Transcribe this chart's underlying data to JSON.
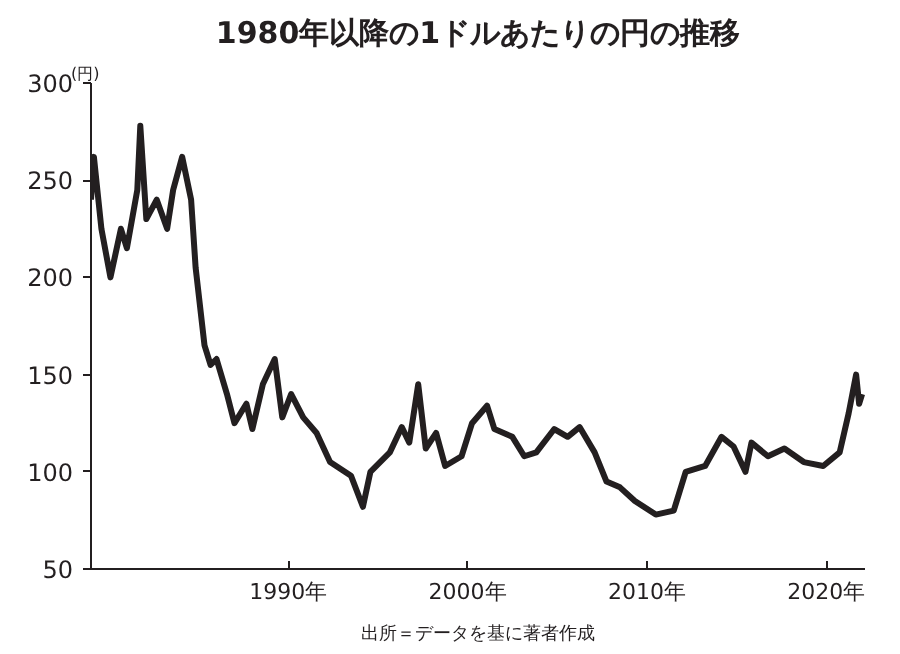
{
  "chart_data": {
    "type": "line",
    "title": "1980年以降の1ドルあたりの円の推移",
    "ylabel": "(円)",
    "annotations": [
      "出所＝データを基に著者作成"
    ],
    "x": [
      "1979-01",
      "1979-03",
      "1979-08",
      "1980-02",
      "1980-09",
      "1981-01",
      "1981-08",
      "1981-10",
      "1982-02",
      "1982-09",
      "1983-04",
      "1983-08",
      "1984-02",
      "1984-08",
      "1984-11",
      "1985-05",
      "1985-09",
      "1986-01",
      "1986-08",
      "1987-01",
      "1987-09",
      "1988-01",
      "1988-08",
      "1989-04",
      "1989-09",
      "1990-03",
      "1990-11",
      "1991-08",
      "1992-05",
      "1993-07",
      "1994-03",
      "1994-08",
      "1995-09",
      "1996-05",
      "1996-10",
      "1997-04",
      "1997-09",
      "1998-04",
      "1998-10",
      "1999-09",
      "2000-04",
      "2001-02",
      "2001-07",
      "2002-07",
      "2003-03",
      "2003-11",
      "2004-11",
      "2005-08",
      "2006-04",
      "2007-02",
      "2007-10",
      "2008-07",
      "2009-05",
      "2010-07",
      "2011-07",
      "2012-03",
      "2013-04",
      "2014-03",
      "2014-11",
      "2015-07",
      "2015-11",
      "2016-10",
      "2017-09",
      "2018-10",
      "2019-11",
      "2020-10",
      "2021-04",
      "2021-09",
      "2021-11",
      "2022-01"
    ],
    "series": [
      {
        "color": "#231f20",
        "values": [
          240,
          262,
          225,
          200,
          225,
          215,
          245,
          278,
          230,
          240,
          225,
          245,
          262,
          240,
          205,
          165,
          155,
          158,
          140,
          125,
          135,
          122,
          145,
          158,
          128,
          140,
          128,
          120,
          105,
          98,
          82,
          100,
          110,
          123,
          115,
          145,
          112,
          120,
          103,
          108,
          125,
          134,
          122,
          118,
          108,
          110,
          122,
          118,
          123,
          110,
          95,
          92,
          85,
          78,
          80,
          100,
          103,
          118,
          113,
          100,
          115,
          108,
          112,
          105,
          103,
          110,
          130,
          150,
          135,
          140
        ]
      }
    ],
    "xlim": [
      "1979-01",
      "2022-03"
    ],
    "xticks": [
      {
        "value": "1990",
        "label": "1990年"
      },
      {
        "value": "2000",
        "label": "2000年"
      },
      {
        "value": "2010",
        "label": "2010年"
      },
      {
        "value": "2020",
        "label": "2020年"
      }
    ],
    "ylim": [
      50,
      300
    ],
    "yticks": [
      50,
      100,
      150,
      200,
      250,
      300
    ],
    "grid": false
  }
}
